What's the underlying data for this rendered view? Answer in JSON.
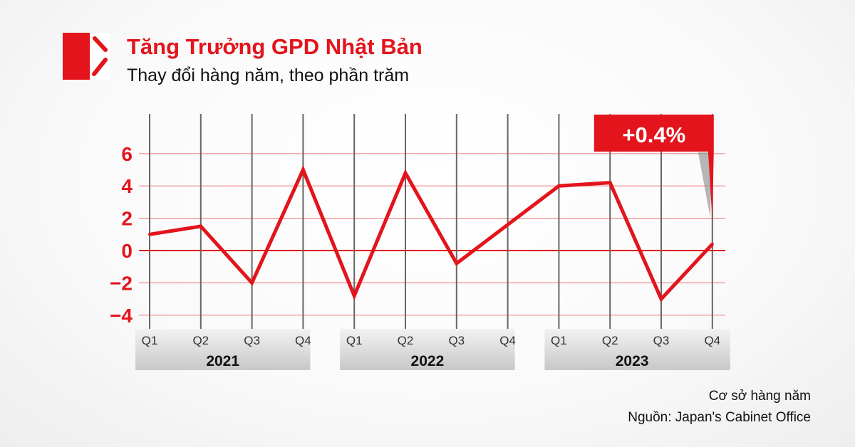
{
  "header": {
    "title": "Tăng Trưởng GPD Nhật Bản",
    "subtitle": "Thay đổi hàng năm, theo phần trăm"
  },
  "chart_data": {
    "type": "line",
    "title": "Tăng Trưởng GPD Nhật Bản",
    "subtitle": "Thay đổi hàng năm, theo phần trăm",
    "categories": [
      "Q1",
      "Q2",
      "Q3",
      "Q4",
      "Q1",
      "Q2",
      "Q3",
      "Q4",
      "Q1",
      "Q2",
      "Q3",
      "Q4"
    ],
    "groups": [
      {
        "label": "2021",
        "span": 4
      },
      {
        "label": "2022",
        "span": 4
      },
      {
        "label": "2023",
        "span": 4
      }
    ],
    "values": [
      1.0,
      1.5,
      -2.0,
      5.0,
      -2.8,
      4.8,
      -0.8,
      1.6,
      4.0,
      4.2,
      -3.0,
      0.4
    ],
    "yticks": [
      6,
      4,
      2,
      0,
      -2,
      -4
    ],
    "ytick_labels": [
      "6",
      "4",
      "2",
      "0",
      "−2",
      "−4"
    ],
    "ylim": [
      -4.5,
      8
    ],
    "grid": true,
    "annotation": "+0.4%",
    "colors": {
      "line": "#e3141c",
      "grid_v": "#666666",
      "grid_h": "#f08a8a",
      "ticks": "#e3141c"
    }
  },
  "footer": {
    "basis": "Cơ sở hàng năm",
    "source": "Nguồn: Japan's Cabinet Office"
  }
}
